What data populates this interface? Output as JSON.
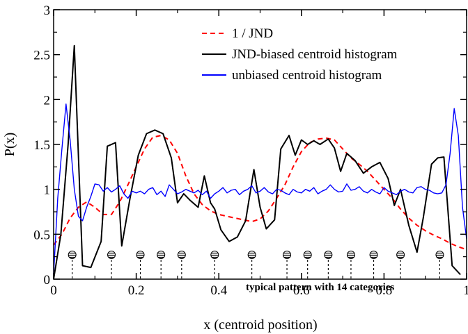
{
  "chart_data": {
    "type": "line",
    "xlabel": "x (centroid position)",
    "ylabel": "P(x)",
    "xlim": [
      0,
      1
    ],
    "ylim": [
      0,
      3
    ],
    "x_ticks": [
      0,
      0.2,
      0.4,
      0.6,
      0.8,
      1
    ],
    "x_tick_labels": [
      "0",
      "0.2",
      "0.4",
      "0.6",
      "0.8",
      "1"
    ],
    "y_ticks": [
      0,
      0.5,
      1,
      1.5,
      2,
      2.5,
      3
    ],
    "y_tick_labels": [
      "0",
      "0.5",
      "1",
      "1.5",
      "2",
      "2.5",
      "3"
    ],
    "legend_position": "top-right",
    "series": [
      {
        "name": "1 / JND",
        "color": "#ff0000",
        "style": "dashed",
        "x": [
          0,
          0.02,
          0.04,
          0.06,
          0.08,
          0.1,
          0.12,
          0.14,
          0.16,
          0.18,
          0.2,
          0.22,
          0.24,
          0.26,
          0.28,
          0.3,
          0.32,
          0.34,
          0.36,
          0.38,
          0.4,
          0.42,
          0.44,
          0.46,
          0.48,
          0.5,
          0.52,
          0.54,
          0.56,
          0.58,
          0.6,
          0.62,
          0.64,
          0.66,
          0.68,
          0.7,
          0.72,
          0.74,
          0.76,
          0.78,
          0.8,
          0.82,
          0.84,
          0.86,
          0.88,
          0.9,
          0.92,
          0.94,
          0.96,
          0.98,
          1.0
        ],
        "y": [
          0.38,
          0.5,
          0.68,
          0.8,
          0.86,
          0.8,
          0.72,
          0.72,
          0.86,
          1.05,
          1.25,
          1.45,
          1.58,
          1.6,
          1.55,
          1.4,
          1.15,
          0.95,
          0.83,
          0.76,
          0.72,
          0.7,
          0.68,
          0.66,
          0.64,
          0.67,
          0.76,
          0.9,
          1.05,
          1.25,
          1.42,
          1.52,
          1.56,
          1.57,
          1.55,
          1.45,
          1.35,
          1.28,
          1.2,
          1.1,
          1.0,
          0.9,
          0.78,
          0.68,
          0.6,
          0.54,
          0.49,
          0.45,
          0.4,
          0.36,
          0.33
        ]
      },
      {
        "name": "JND-biased centroid histogram",
        "color": "#000000",
        "style": "solid",
        "x": [
          0,
          0.0175,
          0.035,
          0.05,
          0.07,
          0.09,
          0.115,
          0.13,
          0.15,
          0.165,
          0.185,
          0.205,
          0.225,
          0.245,
          0.265,
          0.285,
          0.3,
          0.315,
          0.33,
          0.35,
          0.365,
          0.38,
          0.39,
          0.405,
          0.425,
          0.445,
          0.465,
          0.485,
          0.5,
          0.515,
          0.535,
          0.55,
          0.57,
          0.585,
          0.6,
          0.615,
          0.63,
          0.645,
          0.665,
          0.68,
          0.695,
          0.71,
          0.73,
          0.75,
          0.77,
          0.79,
          0.81,
          0.825,
          0.84,
          0.86,
          0.88,
          0.895,
          0.915,
          0.93,
          0.945,
          0.965,
          0.985
        ],
        "y": [
          0.0,
          0.5,
          1.5,
          2.6,
          0.15,
          0.13,
          0.42,
          1.48,
          1.52,
          0.37,
          0.9,
          1.38,
          1.62,
          1.66,
          1.62,
          1.35,
          0.85,
          0.95,
          0.88,
          0.8,
          1.15,
          0.85,
          0.78,
          0.55,
          0.42,
          0.47,
          0.65,
          1.22,
          0.8,
          0.56,
          0.66,
          1.45,
          1.6,
          1.38,
          1.55,
          1.5,
          1.54,
          1.5,
          1.56,
          1.46,
          1.2,
          1.4,
          1.32,
          1.18,
          1.25,
          1.3,
          1.12,
          0.82,
          1.0,
          0.6,
          0.3,
          0.68,
          1.28,
          1.35,
          1.36,
          0.15,
          0.05
        ]
      },
      {
        "name": "unbiased centroid histogram",
        "color": "#0000ff",
        "style": "solid",
        "x": [
          0,
          0.01,
          0.02,
          0.03,
          0.04,
          0.05,
          0.06,
          0.07,
          0.08,
          0.09,
          0.1,
          0.11,
          0.12,
          0.13,
          0.14,
          0.15,
          0.16,
          0.17,
          0.18,
          0.19,
          0.2,
          0.21,
          0.22,
          0.23,
          0.24,
          0.25,
          0.26,
          0.27,
          0.28,
          0.29,
          0.3,
          0.31,
          0.32,
          0.33,
          0.34,
          0.35,
          0.36,
          0.37,
          0.38,
          0.39,
          0.4,
          0.41,
          0.42,
          0.43,
          0.44,
          0.45,
          0.46,
          0.47,
          0.48,
          0.49,
          0.5,
          0.51,
          0.52,
          0.53,
          0.54,
          0.55,
          0.56,
          0.57,
          0.58,
          0.59,
          0.6,
          0.61,
          0.62,
          0.63,
          0.64,
          0.65,
          0.66,
          0.67,
          0.68,
          0.69,
          0.7,
          0.71,
          0.72,
          0.73,
          0.74,
          0.75,
          0.76,
          0.77,
          0.78,
          0.79,
          0.8,
          0.81,
          0.82,
          0.83,
          0.84,
          0.85,
          0.86,
          0.87,
          0.88,
          0.89,
          0.9,
          0.91,
          0.92,
          0.93,
          0.94,
          0.95,
          0.96,
          0.97,
          0.98,
          0.99,
          1.0
        ],
        "y": [
          0.05,
          0.9,
          1.45,
          1.95,
          1.55,
          1.0,
          0.7,
          0.65,
          0.8,
          0.92,
          1.06,
          1.05,
          0.98,
          1.02,
          0.97,
          1.0,
          1.04,
          0.95,
          0.9,
          0.98,
          0.96,
          0.98,
          0.95,
          1.0,
          1.02,
          0.94,
          0.98,
          0.92,
          1.05,
          1.0,
          0.95,
          0.97,
          1.0,
          0.98,
          0.96,
          0.99,
          0.94,
          0.98,
          0.9,
          0.95,
          0.98,
          1.02,
          0.96,
          0.99,
          1.0,
          0.94,
          0.98,
          1.0,
          1.04,
          0.96,
          0.98,
          1.02,
          0.97,
          0.95,
          1.0,
          0.99,
          0.96,
          0.94,
          1.0,
          0.97,
          0.96,
          1.0,
          0.98,
          1.02,
          0.95,
          0.98,
          1.0,
          1.05,
          1.0,
          0.97,
          0.98,
          1.06,
          0.99,
          1.0,
          1.03,
          0.98,
          0.96,
          1.0,
          0.97,
          0.95,
          1.02,
          0.98,
          0.96,
          0.94,
          0.98,
          1.0,
          0.97,
          0.96,
          1.02,
          1.03,
          1.0,
          0.99,
          0.96,
          0.95,
          0.96,
          1.05,
          1.4,
          1.9,
          1.6,
          0.8,
          0.45
        ]
      }
    ],
    "annotation": {
      "text": "typical pattern with 14 categories",
      "category_markers_x": [
        0.045,
        0.14,
        0.21,
        0.26,
        0.31,
        0.39,
        0.48,
        0.565,
        0.615,
        0.665,
        0.72,
        0.775,
        0.84,
        0.935
      ]
    }
  }
}
